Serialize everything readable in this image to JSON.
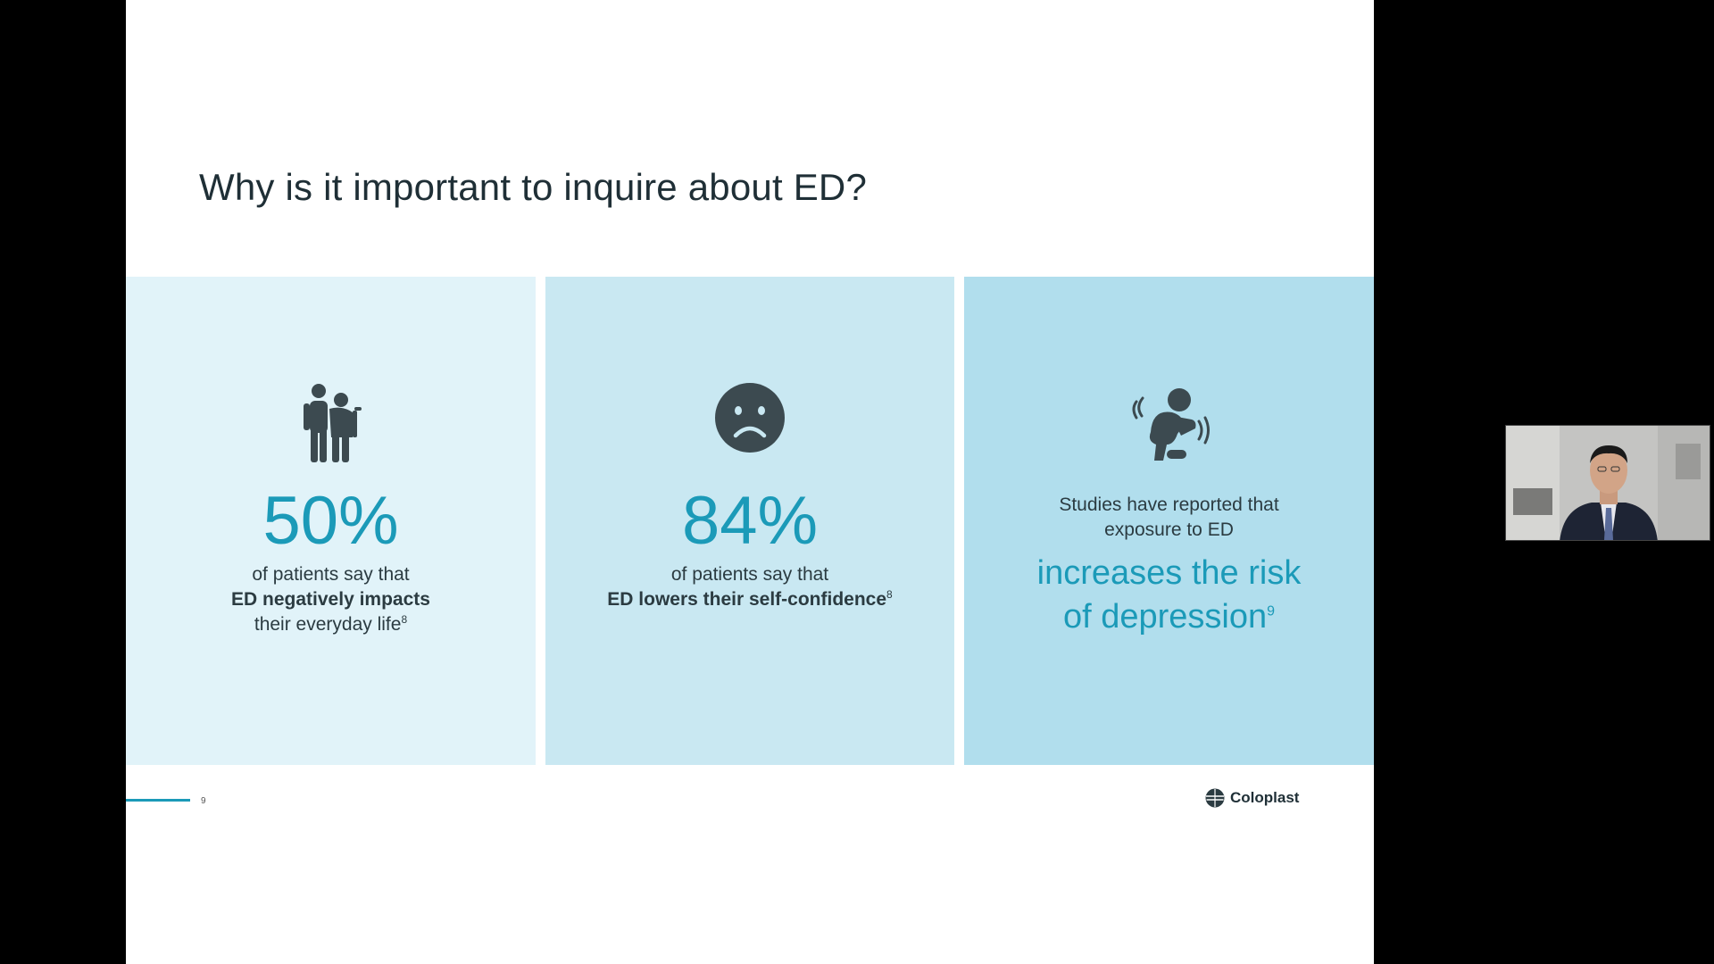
{
  "slide": {
    "title": "Why is it important to inquire about ED?",
    "page_number": "9",
    "brand": "Coloplast"
  },
  "panels": [
    {
      "icon": "elderly-couple-icon",
      "stat": "50%",
      "line1": "of patients say that",
      "line2": "ED negatively impacts",
      "line3": "their everyday life",
      "ref": "8"
    },
    {
      "icon": "sad-face-icon",
      "stat": "84%",
      "line1": "of patients say that",
      "line2": "ED lowers their self-confidence",
      "ref": "8"
    },
    {
      "icon": "distressed-person-icon",
      "line1": "Studies have reported that",
      "line2": "exposure to ED",
      "highlight1": "increases the risk",
      "highlight2": "of depression",
      "ref": "9"
    }
  ],
  "colors": {
    "accent": "#1b9ab8",
    "panel1": "#e1f3f9",
    "panel2": "#c9e8f2",
    "panel3": "#b1deed",
    "icon": "#3c4a50"
  },
  "webcam": {
    "subject": "presenter-video"
  }
}
